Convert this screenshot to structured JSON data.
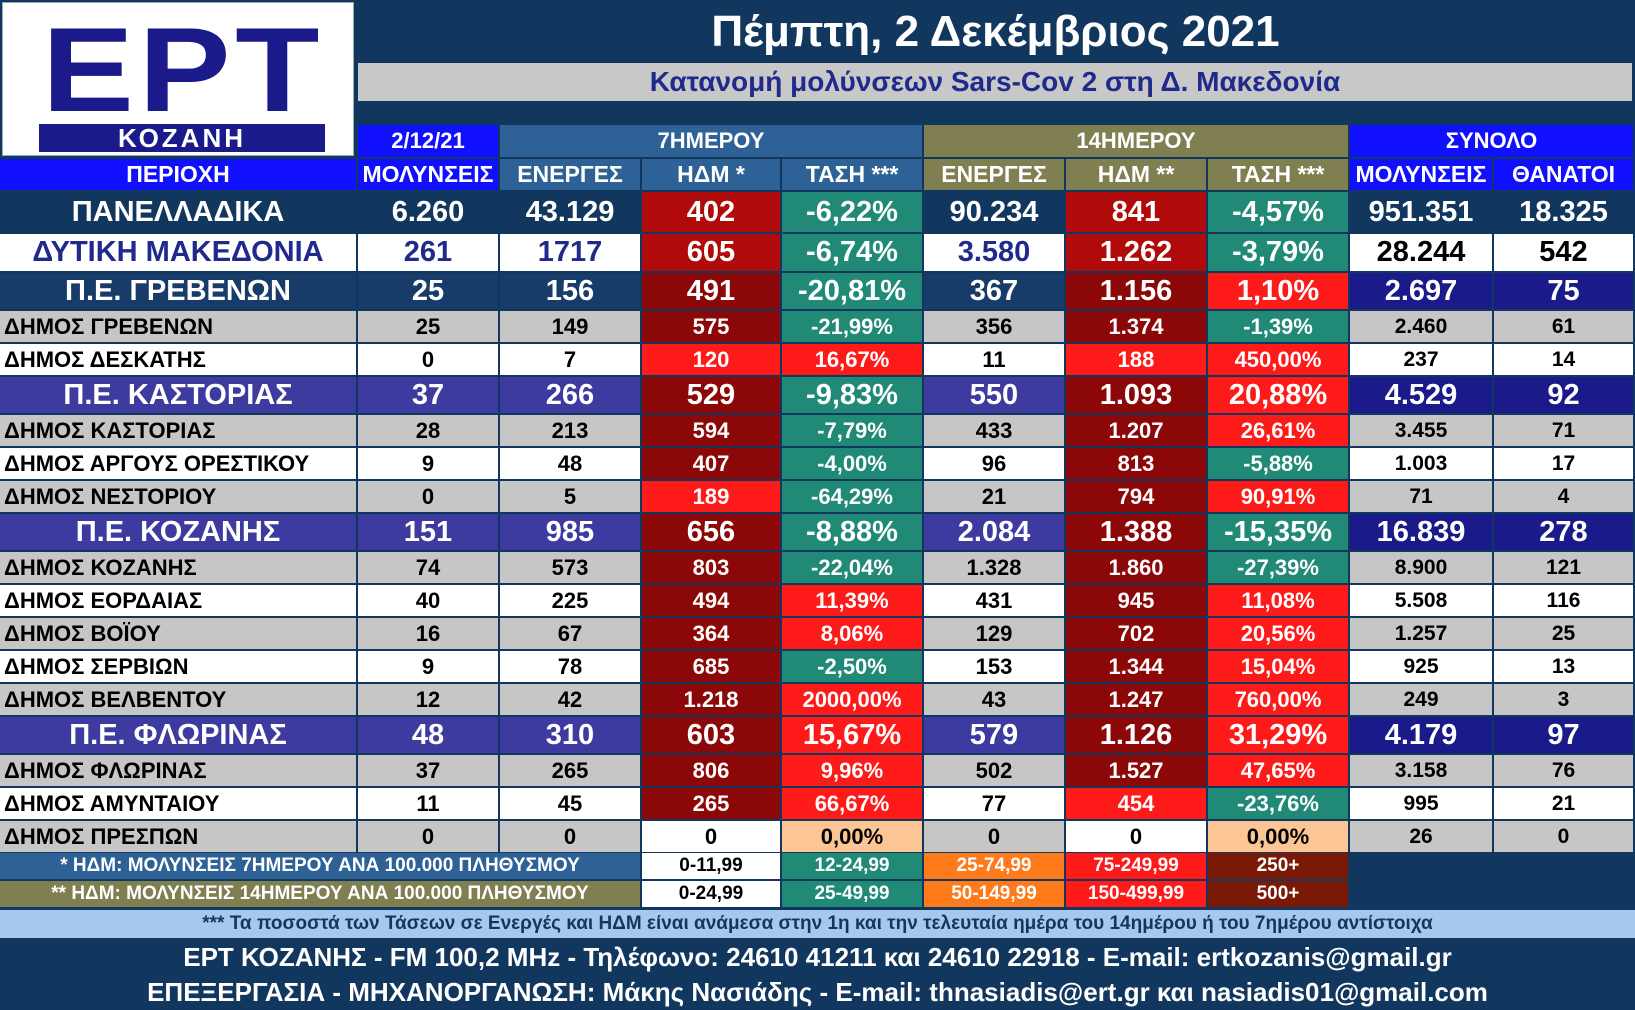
{
  "logo": {
    "brand": "ΕΡΤ",
    "station": "ΚΟΖΑΝΗ"
  },
  "title": "Πέμπτη, 2 Δεκέμβριος 2021",
  "subtitle": "Κατανομή μολύνσεων Sars-Cov 2 στη Δ. Μακεδονία",
  "group_headers": {
    "date": "2/12/21",
    "week": "7ΗΜΕΡΟΥ",
    "fortnight": "14ΗΜΕΡΟΥ",
    "total": "ΣΥΝΟΛΟ"
  },
  "columns": [
    "ΠΕΡΙΟΧΗ",
    "ΜΟΛΥΝΣΕΙΣ",
    "ΕΝΕΡΓΕΣ",
    "ΗΔΜ *",
    "ΤΑΣΗ ***",
    "ΕΝΕΡΓΕΣ",
    "ΗΔΜ **",
    "ΤΑΣΗ ***",
    "ΜΟΛΥΝΣΕΙΣ",
    "ΘΑΝΑΤΟΙ"
  ],
  "rows": [
    {
      "type": "national",
      "cells": [
        "ΠΑΝΕΛΛΑΔΙΚΑ",
        "6.260",
        "43.129",
        "402",
        "-6,22%",
        "90.234",
        "841",
        "-4,57%",
        "951.351",
        "18.325"
      ]
    },
    {
      "type": "region",
      "cells": [
        "ΔΥΤΙΚΗ ΜΑΚΕΔΟΝΙΑ",
        "261",
        "1717",
        "605",
        "-6,74%",
        "3.580",
        "1.262",
        "-3,79%",
        "28.244",
        "542"
      ]
    },
    {
      "type": "unit-a",
      "cells": [
        "Π.Ε. ΓΡΕΒΕΝΩΝ",
        "25",
        "156",
        "491",
        "-20,81%",
        "367",
        "1.156",
        "1,10%",
        "2.697",
        "75"
      ]
    },
    {
      "type": "mun-g",
      "cells": [
        "ΔΗΜΟΣ ΓΡΕΒΕΝΩΝ",
        "25",
        "149",
        "575",
        "-21,99%",
        "356",
        "1.374",
        "-1,39%",
        "2.460",
        "61"
      ]
    },
    {
      "type": "mun-w",
      "cells": [
        "ΔΗΜΟΣ ΔΕΣΚΑΤΗΣ",
        "0",
        "7",
        "120",
        "16,67%",
        "11",
        "188",
        "450,00%",
        "237",
        "14"
      ]
    },
    {
      "type": "unit",
      "cells": [
        "Π.Ε. ΚΑΣΤΟΡΙΑΣ",
        "37",
        "266",
        "529",
        "-9,83%",
        "550",
        "1.093",
        "20,88%",
        "4.529",
        "92"
      ]
    },
    {
      "type": "mun-g",
      "cells": [
        "ΔΗΜΟΣ ΚΑΣΤΟΡΙΑΣ",
        "28",
        "213",
        "594",
        "-7,79%",
        "433",
        "1.207",
        "26,61%",
        "3.455",
        "71"
      ]
    },
    {
      "type": "mun-w",
      "cells": [
        "ΔΗΜΟΣ ΑΡΓΟΥΣ ΟΡΕΣΤΙΚΟΥ",
        "9",
        "48",
        "407",
        "-4,00%",
        "96",
        "813",
        "-5,88%",
        "1.003",
        "17"
      ]
    },
    {
      "type": "mun-g",
      "cells": [
        "ΔΗΜΟΣ ΝΕΣΤΟΡΙΟΥ",
        "0",
        "5",
        "189",
        "-64,29%",
        "21",
        "794",
        "90,91%",
        "71",
        "4"
      ]
    },
    {
      "type": "unit",
      "cells": [
        "Π.Ε. ΚΟΖΑΝΗΣ",
        "151",
        "985",
        "656",
        "-8,88%",
        "2.084",
        "1.388",
        "-15,35%",
        "16.839",
        "278"
      ]
    },
    {
      "type": "mun-g",
      "cells": [
        "ΔΗΜΟΣ ΚΟΖΑΝΗΣ",
        "74",
        "573",
        "803",
        "-22,04%",
        "1.328",
        "1.860",
        "-27,39%",
        "8.900",
        "121"
      ]
    },
    {
      "type": "mun-w",
      "cells": [
        "ΔΗΜΟΣ ΕΟΡΔΑΙΑΣ",
        "40",
        "225",
        "494",
        "11,39%",
        "431",
        "945",
        "11,08%",
        "5.508",
        "116"
      ]
    },
    {
      "type": "mun-g",
      "cells": [
        "ΔΗΜΟΣ ΒΟΪΟΥ",
        "16",
        "67",
        "364",
        "8,06%",
        "129",
        "702",
        "20,56%",
        "1.257",
        "25"
      ]
    },
    {
      "type": "mun-w",
      "cells": [
        "ΔΗΜΟΣ ΣΕΡΒΙΩΝ",
        "9",
        "78",
        "685",
        "-2,50%",
        "153",
        "1.344",
        "15,04%",
        "925",
        "13"
      ]
    },
    {
      "type": "mun-g",
      "cells": [
        "ΔΗΜΟΣ ΒΕΛΒΕΝΤΟΥ",
        "12",
        "42",
        "1.218",
        "2000,00%",
        "43",
        "1.247",
        "760,00%",
        "249",
        "3"
      ]
    },
    {
      "type": "unit",
      "cells": [
        "Π.Ε. ΦΛΩΡΙΝΑΣ",
        "48",
        "310",
        "603",
        "15,67%",
        "579",
        "1.126",
        "31,29%",
        "4.179",
        "97"
      ]
    },
    {
      "type": "mun-g",
      "cells": [
        "ΔΗΜΟΣ ΦΛΩΡΙΝΑΣ",
        "37",
        "265",
        "806",
        "9,96%",
        "502",
        "1.527",
        "47,65%",
        "3.158",
        "76"
      ]
    },
    {
      "type": "mun-w",
      "cells": [
        "ΔΗΜΟΣ ΑΜΥΝΤΑΙΟΥ",
        "11",
        "45",
        "265",
        "66,67%",
        "77",
        "454",
        "-23,76%",
        "995",
        "21"
      ]
    },
    {
      "type": "mun-g",
      "cells": [
        "ΔΗΜΟΣ ΠΡΕΣΠΩΝ",
        "0",
        "0",
        "0",
        "0,00%",
        "0",
        "0",
        "0,00%",
        "26",
        "0"
      ]
    }
  ],
  "legend": {
    "week_note": "* ΗΔΜ: ΜΟΛΥΝΣΕΙΣ 7ΗΜΕΡΟΥ ΑΝΑ 100.000 ΠΛΗΘΥΣΜΟΥ",
    "week_ranges": [
      "0-11,99",
      "12-24,99",
      "25-74,99",
      "75-249,99",
      "250+"
    ],
    "fortnight_note": "** ΗΔΜ: ΜΟΛΥΝΣΕΙΣ 14ΗΜΕΡΟΥ ΑΝΑ 100.000 ΠΛΗΘΥΣΜΟΥ",
    "fortnight_ranges": [
      "0-24,99",
      "25-49,99",
      "50-149,99",
      "150-499,99",
      "500+"
    ],
    "range_colors": [
      "#ffffff",
      "#218a76",
      "#ff7a1a",
      "#ff1a1a",
      "#7a1a06"
    ]
  },
  "footnote": "*** Τα ποσοστά των Τάσεων σε Ενεργές και ΗΔΜ είναι ανάμεσα στην 1η και την τελευταία ημέρα του 14ημέρου ή του 7ημέρου αντίστοιχα",
  "contact_line": "ΕΡΤ ΚΟΖΑΝΗΣ - FM 100,2 MHz - Τηλέφωνο:  24610 41211 και 24610 22918 - E-mail: ertkozanis@gmail.gr",
  "credit_line": "ΕΠΕΞΕΡΓΑΣΙΑ  -  ΜΗΧΑΝΟΡΓΑΝΩΣΗ: Μάκης Νασιάδης  -   E-mail: thnasiadis@ert.gr και nasiadis01@gmail.com",
  "colors": {
    "background": "#12375e",
    "blue_header": "#1010ff",
    "week_header": "#2e6296",
    "fortnight_header": "#7f7f52",
    "unit_row": "#3d3aa0",
    "greben_unit_row": "#173c6a",
    "white_row": "#ffffff",
    "gray_row": "#c6c6c6",
    "hdm_red": "#ff1a1a",
    "hdm_darkred": "#b00a0a",
    "hdm_deep": "#8c0808",
    "trend_green": "#218a76",
    "trend_red": "#ff1a1a",
    "trend_peach": "#fbc596",
    "footer_band": "#a6c8ef"
  }
}
